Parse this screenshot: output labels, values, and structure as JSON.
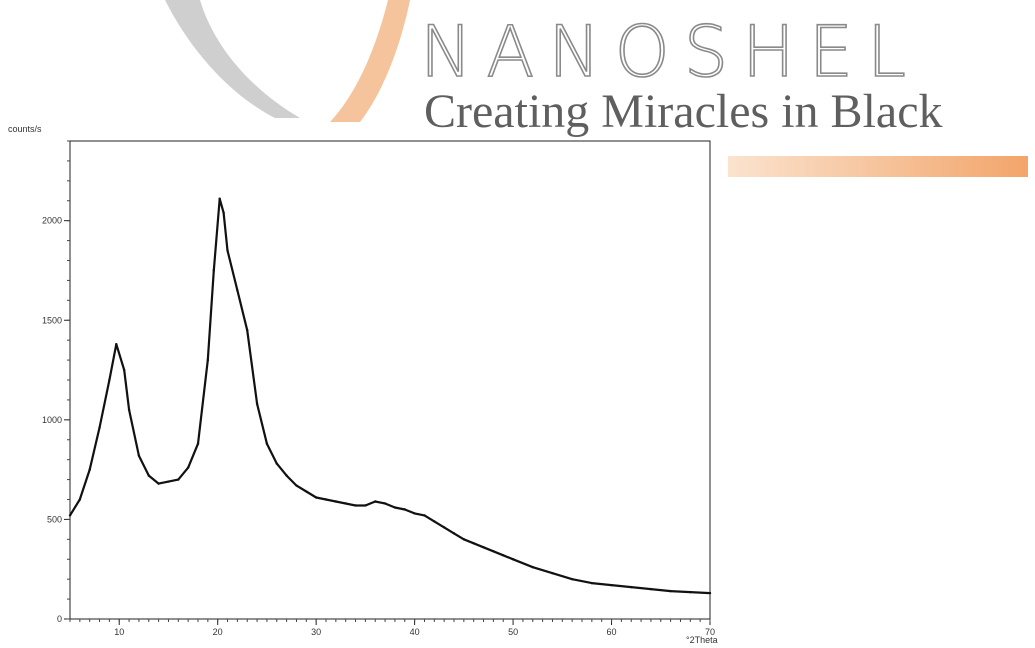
{
  "brand": {
    "name": "NANOSHEL",
    "tagline": "Creating Miracles in Black"
  },
  "colors": {
    "accent_orange": "#f2a56a",
    "swoosh_gray": "#cfcfcf",
    "trace": "#111111"
  },
  "chart_data": {
    "type": "line",
    "xlabel": "°2Theta",
    "ylabel": "counts/s",
    "xlim": [
      5,
      70
    ],
    "ylim": [
      0,
      2400
    ],
    "x_ticks": [
      10,
      20,
      30,
      40,
      50,
      60,
      70
    ],
    "y_ticks": [
      0,
      500,
      1000,
      1500,
      2000
    ],
    "grid": false,
    "series": [
      {
        "x": [
          5,
          6,
          7,
          8,
          9,
          9.7,
          10.5,
          11,
          12,
          13,
          14,
          15,
          16,
          17,
          18,
          19,
          19.6,
          20.2,
          20.6,
          21,
          22,
          23,
          24,
          25,
          26,
          27,
          28,
          29,
          30,
          31,
          32,
          33,
          34,
          35,
          36,
          37,
          38,
          39,
          40,
          41,
          42,
          43,
          44,
          45,
          46,
          47,
          48,
          49,
          50,
          52,
          54,
          56,
          58,
          60,
          62,
          64,
          66,
          68,
          70
        ],
        "y": [
          520,
          600,
          750,
          960,
          1200,
          1380,
          1250,
          1050,
          820,
          720,
          680,
          690,
          700,
          760,
          880,
          1300,
          1750,
          2110,
          2040,
          1850,
          1650,
          1450,
          1080,
          880,
          780,
          720,
          670,
          640,
          610,
          600,
          590,
          580,
          570,
          570,
          590,
          580,
          560,
          550,
          530,
          520,
          490,
          460,
          430,
          400,
          380,
          360,
          340,
          320,
          300,
          260,
          230,
          200,
          180,
          170,
          160,
          150,
          140,
          135,
          130
        ]
      }
    ]
  }
}
